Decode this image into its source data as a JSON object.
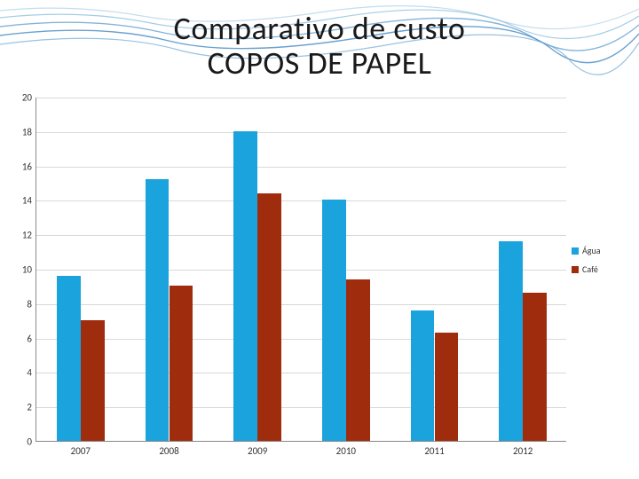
{
  "title": {
    "line1": "Comparativo de custo",
    "line2": "COPOS DE PAPEL",
    "fontsize": 36,
    "color": "#1a1a1a"
  },
  "chart": {
    "type": "bar",
    "categories": [
      "2007",
      "2008",
      "2009",
      "2010",
      "2011",
      "2012"
    ],
    "series": [
      {
        "name": "Água",
        "color": "#1aa3dd",
        "values": [
          9.6,
          15.2,
          18.0,
          14.0,
          7.6,
          11.6
        ]
      },
      {
        "name": "Café",
        "color": "#a02c0e",
        "values": [
          7.0,
          9.0,
          14.4,
          9.4,
          6.3,
          8.6
        ]
      }
    ],
    "ylim": [
      0,
      20
    ],
    "ytick_step": 2,
    "background_color": "#ffffff",
    "grid_color": "#d9d9d9",
    "axis_color": "#888888",
    "tick_fontsize": 11,
    "bar_group_width": 0.54,
    "legend": {
      "position": "right-middle",
      "fontsize": 10
    }
  },
  "decorative_waves": {
    "colors": [
      "#8fbfe0",
      "#6fa8d4",
      "#4f91c8",
      "#b5d4ea"
    ]
  }
}
